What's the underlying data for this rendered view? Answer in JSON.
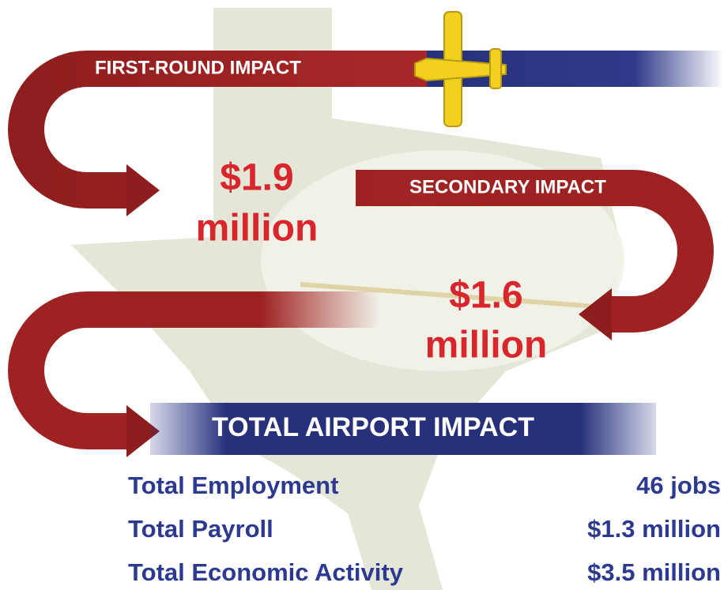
{
  "first_round": {
    "label": "FIRST-ROUND IMPACT",
    "amount": "$1.9",
    "unit": "million"
  },
  "secondary": {
    "label": "SECONDARY IMPACT",
    "amount": "$1.6",
    "unit": "million"
  },
  "total": {
    "label": "TOTAL AIRPORT IMPACT",
    "rows": [
      {
        "label": "Total Employment",
        "value": "46 jobs"
      },
      {
        "label": "Total Payroll",
        "value": "$1.3 million"
      },
      {
        "label": "Total Economic Activity",
        "value": "$3.5 million"
      }
    ]
  }
}
